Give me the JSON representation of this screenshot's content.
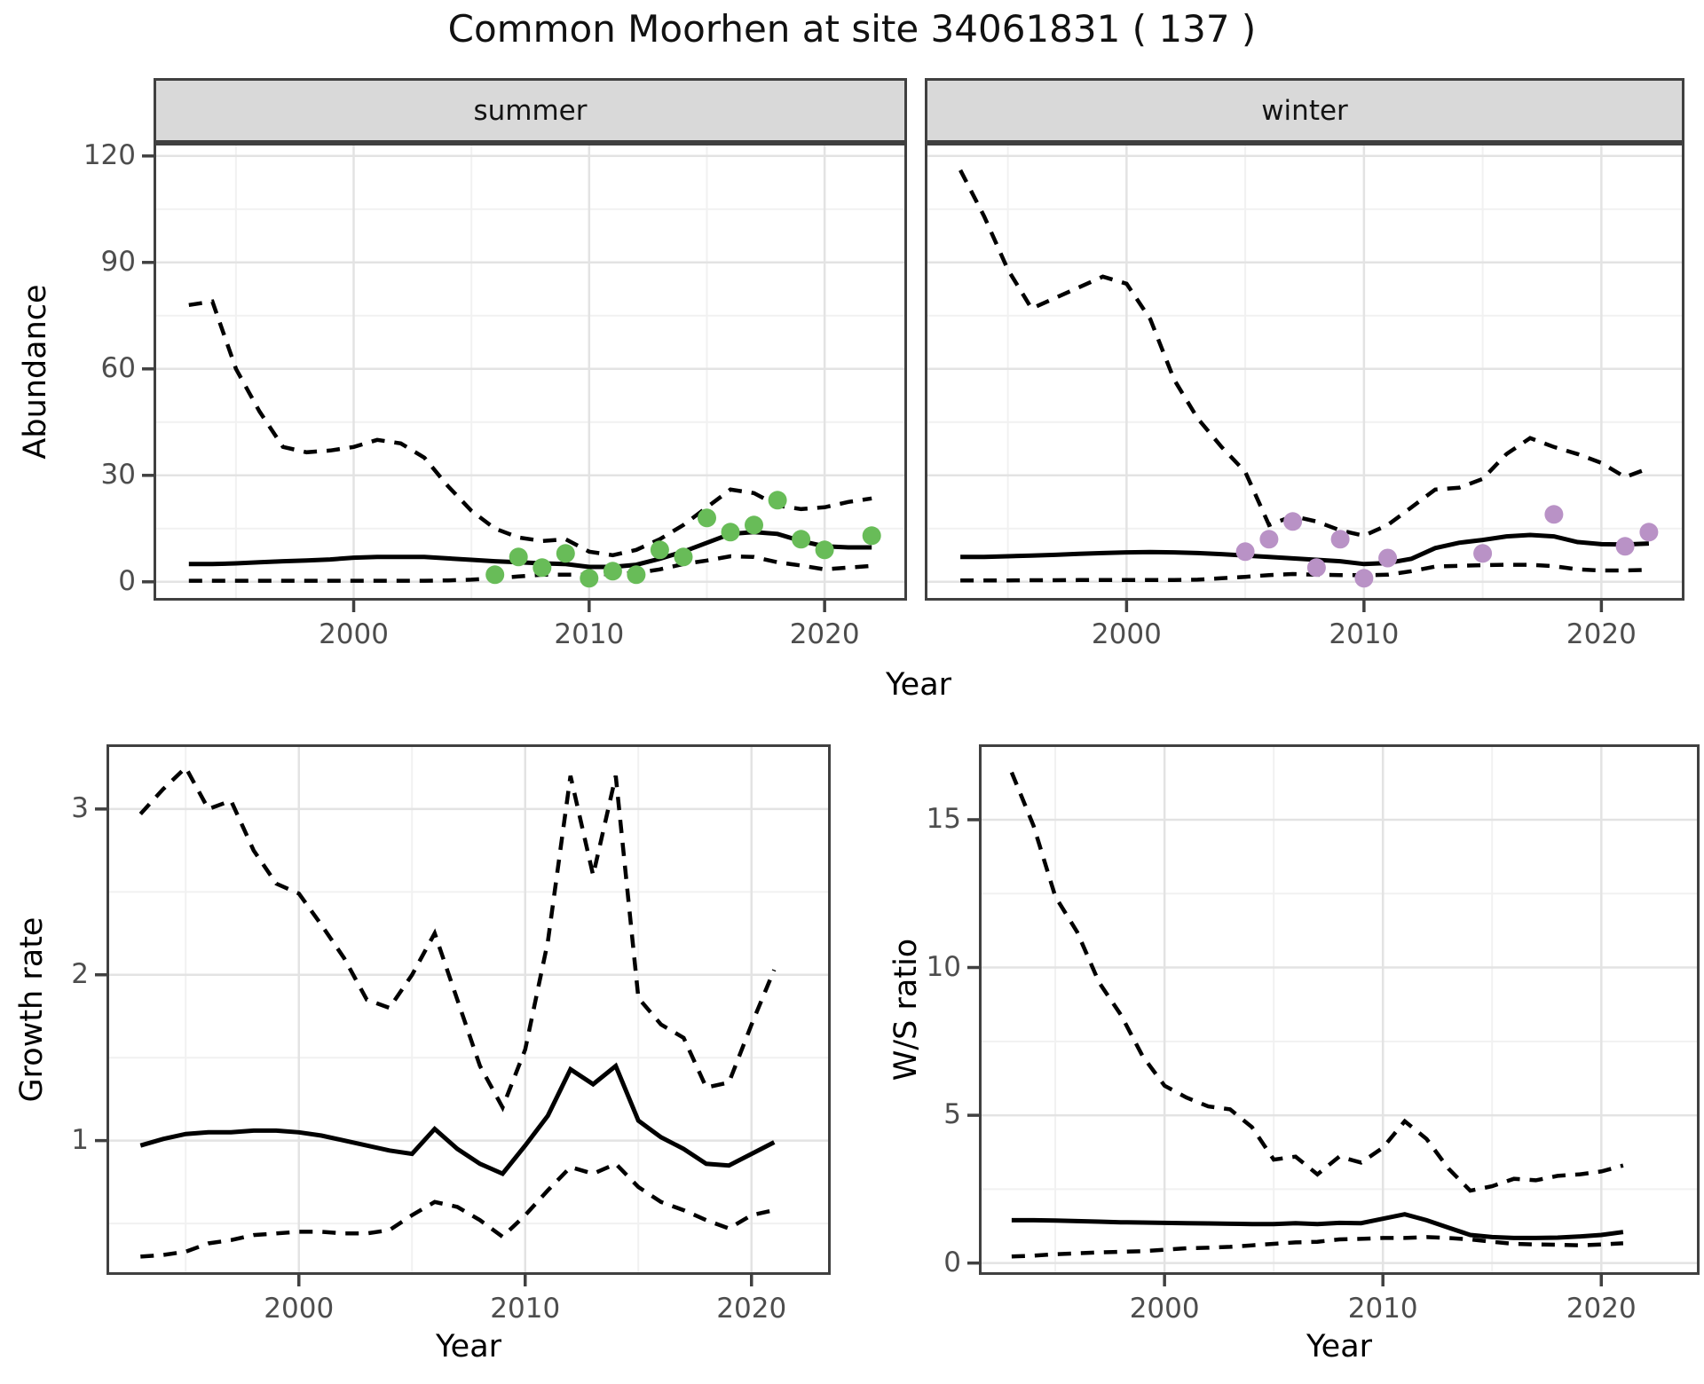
{
  "title": "Common Moorhen at site 34061831 ( 137 )",
  "labels": {
    "abundance": "Abundance",
    "year": "Year",
    "growth_rate": "Growth rate",
    "ws_ratio": "W/S ratio"
  },
  "colors": {
    "summer_points": "#68bc58",
    "winter_points": "#b992c6",
    "line": "#000000",
    "grid_major": "#e3e3e3",
    "grid_minor": "#f1f1f1",
    "panel_border": "#404040",
    "strip_bg": "#d9d9d9",
    "tick_text": "#4d4d4d"
  },
  "chart_data": [
    {
      "id": "summer",
      "type": "line",
      "facet_label": "summer",
      "xlabel": "Year",
      "ylabel": "Abundance",
      "xlim": [
        1991.5,
        2023.5
      ],
      "ylim": [
        -5.3,
        123.7
      ],
      "xticks": [
        2000,
        2010,
        2020
      ],
      "xminor": [
        1995,
        2005,
        2015
      ],
      "yticks": [
        0,
        30,
        60,
        90,
        120
      ],
      "yminor": [
        15,
        45,
        75,
        105
      ],
      "grid": "major+minor",
      "legend": "none",
      "years": [
        1993,
        1994,
        1995,
        1996,
        1997,
        1998,
        1999,
        2000,
        2001,
        2002,
        2003,
        2004,
        2005,
        2006,
        2007,
        2008,
        2009,
        2010,
        2011,
        2012,
        2013,
        2014,
        2015,
        2016,
        2017,
        2018,
        2019,
        2020,
        2021,
        2022
      ],
      "series": [
        {
          "name": "upper_ci",
          "style": "dashed",
          "values": [
            78,
            79,
            60,
            48,
            38,
            36.5,
            37,
            38,
            40,
            39,
            35,
            27,
            20,
            15,
            12.5,
            11.5,
            12,
            8.5,
            7.5,
            9,
            12,
            16,
            21,
            26,
            25,
            21.5,
            20.5,
            21,
            22.5,
            23.5
          ]
        },
        {
          "name": "mean",
          "style": "solid",
          "values": [
            5,
            5,
            5.2,
            5.5,
            5.8,
            6,
            6.3,
            6.8,
            7,
            7,
            7,
            6.6,
            6.2,
            5.8,
            5.5,
            5.2,
            5,
            4.2,
            4.2,
            4.8,
            6.5,
            8.5,
            11,
            13.5,
            14,
            13.5,
            11.5,
            10,
            9.7,
            9.7
          ]
        },
        {
          "name": "lower_ci",
          "style": "dashed",
          "values": [
            0.3,
            0.3,
            0.3,
            0.3,
            0.3,
            0.3,
            0.3,
            0.3,
            0.3,
            0.3,
            0.3,
            0.4,
            0.6,
            1,
            1.5,
            2,
            2,
            2,
            2.2,
            2.5,
            3.5,
            5,
            6,
            7.2,
            7,
            5.5,
            4.6,
            3.5,
            4,
            4.5
          ]
        }
      ],
      "points": {
        "name": "observed_summer",
        "color_key": "summer_points",
        "years": [
          2006,
          2007,
          2008,
          2009,
          2010,
          2011,
          2012,
          2013,
          2014,
          2015,
          2016,
          2017,
          2018,
          2019,
          2020,
          2022
        ],
        "values": [
          2,
          7,
          4,
          8,
          1,
          3,
          2,
          9,
          7,
          18,
          14,
          16,
          23,
          12,
          9,
          13
        ]
      }
    },
    {
      "id": "winter",
      "type": "line",
      "facet_label": "winter",
      "xlabel": "Year",
      "ylabel": "Abundance",
      "xlim": [
        1991.5,
        2023.5
      ],
      "ylim": [
        -5.3,
        123.7
      ],
      "xticks": [
        2000,
        2010,
        2020
      ],
      "xminor": [
        1995,
        2005,
        2015
      ],
      "yticks": [
        0,
        30,
        60,
        90,
        120
      ],
      "yminor": [
        15,
        45,
        75,
        105
      ],
      "grid": "major+minor",
      "legend": "none",
      "years": [
        1993,
        1994,
        1995,
        1996,
        1997,
        1998,
        1999,
        2000,
        2001,
        2002,
        2003,
        2004,
        2005,
        2006,
        2007,
        2008,
        2009,
        2010,
        2011,
        2012,
        2013,
        2014,
        2015,
        2016,
        2017,
        2018,
        2019,
        2020,
        2021,
        2022
      ],
      "series": [
        {
          "name": "upper_ci",
          "style": "dashed",
          "values": [
            116,
            103,
            88,
            77,
            80,
            83,
            86,
            84,
            74,
            57,
            46,
            38,
            31,
            16,
            18.5,
            17,
            14.5,
            13,
            16,
            21,
            26,
            26.5,
            29,
            36,
            40.5,
            38,
            36,
            33.5,
            29.5,
            32
          ]
        },
        {
          "name": "mean",
          "style": "solid",
          "values": [
            7,
            7,
            7.2,
            7.4,
            7.6,
            7.9,
            8.1,
            8.3,
            8.4,
            8.3,
            8.1,
            7.8,
            7.4,
            7,
            6.6,
            6.2,
            5.8,
            5,
            5.3,
            6.5,
            9.5,
            11,
            11.8,
            12.8,
            13.2,
            12.8,
            11.2,
            10.6,
            10.5,
            10.8
          ]
        },
        {
          "name": "lower_ci",
          "style": "dashed",
          "values": [
            0.4,
            0.4,
            0.4,
            0.45,
            0.45,
            0.5,
            0.5,
            0.5,
            0.5,
            0.5,
            0.6,
            1,
            1.4,
            1.9,
            2.2,
            2,
            1.9,
            1.85,
            2,
            3,
            4.3,
            4.5,
            4.7,
            4.8,
            4.8,
            4.4,
            3.5,
            3.2,
            3.2,
            3.4
          ]
        }
      ],
      "points": {
        "name": "observed_winter",
        "color_key": "winter_points",
        "years": [
          2005,
          2006,
          2007,
          2008,
          2009,
          2010,
          2011,
          2015,
          2018,
          2021,
          2022
        ],
        "values": [
          8.5,
          12,
          17,
          4,
          12,
          1,
          6.7,
          8,
          19,
          10,
          14
        ]
      }
    },
    {
      "id": "growth",
      "type": "line",
      "facet_label": null,
      "xlabel": "Year",
      "ylabel": "Growth rate",
      "xlim": [
        1991.5,
        2023.5
      ],
      "ylim": [
        0.19,
        3.39
      ],
      "xticks": [
        2000,
        2010,
        2020
      ],
      "xminor": [
        1995,
        2005,
        2015
      ],
      "yticks": [
        1,
        2,
        3
      ],
      "yminor": [
        0.5,
        1.5,
        2.5
      ],
      "grid": "major+minor",
      "legend": "none",
      "years": [
        1993,
        1994,
        1995,
        1996,
        1997,
        1998,
        1999,
        2000,
        2001,
        2002,
        2003,
        2004,
        2005,
        2006,
        2007,
        2008,
        2009,
        2010,
        2011,
        2012,
        2013,
        2014,
        2015,
        2016,
        2017,
        2018,
        2019,
        2020,
        2021
      ],
      "series": [
        {
          "name": "upper_ci",
          "style": "dashed",
          "values": [
            2.97,
            3.12,
            3.25,
            3.0,
            3.05,
            2.75,
            2.55,
            2.49,
            2.3,
            2.1,
            1.85,
            1.8,
            2.0,
            2.25,
            1.85,
            1.45,
            1.2,
            1.55,
            2.2,
            3.2,
            2.6,
            3.2,
            1.86,
            1.7,
            1.62,
            1.32,
            1.35,
            1.7,
            2.03
          ]
        },
        {
          "name": "mean",
          "style": "solid",
          "values": [
            0.97,
            1.01,
            1.04,
            1.05,
            1.05,
            1.06,
            1.06,
            1.05,
            1.03,
            1.0,
            0.97,
            0.94,
            0.92,
            1.07,
            0.95,
            0.86,
            0.8,
            0.97,
            1.15,
            1.43,
            1.34,
            1.45,
            1.12,
            1.02,
            0.95,
            0.86,
            0.85,
            0.92,
            0.99
          ]
        },
        {
          "name": "lower_ci",
          "style": "dashed",
          "values": [
            0.3,
            0.31,
            0.33,
            0.38,
            0.4,
            0.43,
            0.44,
            0.45,
            0.45,
            0.44,
            0.44,
            0.46,
            0.55,
            0.63,
            0.6,
            0.52,
            0.42,
            0.55,
            0.7,
            0.84,
            0.8,
            0.86,
            0.72,
            0.63,
            0.58,
            0.52,
            0.47,
            0.55,
            0.58
          ]
        }
      ],
      "points": null
    },
    {
      "id": "ws",
      "type": "line",
      "facet_label": null,
      "xlabel": "Year",
      "ylabel": "W/S ratio",
      "xlim": [
        1991.5,
        2024.5
      ],
      "ylim": [
        -0.4,
        17.55
      ],
      "xticks": [
        2000,
        2010,
        2020
      ],
      "xminor": [
        1995,
        2005,
        2015
      ],
      "yticks": [
        0,
        5,
        10,
        15
      ],
      "yminor": [
        2.5,
        7.5,
        12.5,
        17.5
      ],
      "grid": "major+minor",
      "legend": "none",
      "years": [
        1993,
        1994,
        1995,
        1996,
        1997,
        1998,
        1999,
        2000,
        2001,
        2002,
        2003,
        2004,
        2005,
        2006,
        2007,
        2008,
        2009,
        2010,
        2011,
        2012,
        2013,
        2014,
        2015,
        2016,
        2017,
        2018,
        2019,
        2020,
        2021
      ],
      "series": [
        {
          "name": "upper_ci",
          "style": "dashed",
          "values": [
            16.6,
            14.8,
            12.4,
            11.2,
            9.5,
            8.4,
            7.0,
            6.0,
            5.6,
            5.3,
            5.2,
            4.6,
            3.5,
            3.6,
            3.0,
            3.6,
            3.4,
            3.9,
            4.8,
            4.2,
            3.2,
            2.45,
            2.6,
            2.85,
            2.8,
            2.95,
            3.0,
            3.1,
            3.3
          ]
        },
        {
          "name": "mean",
          "style": "solid",
          "values": [
            1.45,
            1.45,
            1.44,
            1.42,
            1.4,
            1.38,
            1.37,
            1.36,
            1.35,
            1.34,
            1.33,
            1.32,
            1.32,
            1.35,
            1.32,
            1.36,
            1.35,
            1.5,
            1.65,
            1.45,
            1.2,
            0.95,
            0.88,
            0.85,
            0.85,
            0.86,
            0.9,
            0.95,
            1.05
          ]
        },
        {
          "name": "lower_ci",
          "style": "dashed",
          "values": [
            0.22,
            0.25,
            0.3,
            0.33,
            0.36,
            0.38,
            0.4,
            0.45,
            0.5,
            0.52,
            0.55,
            0.6,
            0.65,
            0.7,
            0.72,
            0.8,
            0.82,
            0.85,
            0.85,
            0.88,
            0.85,
            0.8,
            0.72,
            0.65,
            0.63,
            0.62,
            0.6,
            0.63,
            0.67
          ]
        }
      ],
      "points": null
    }
  ]
}
